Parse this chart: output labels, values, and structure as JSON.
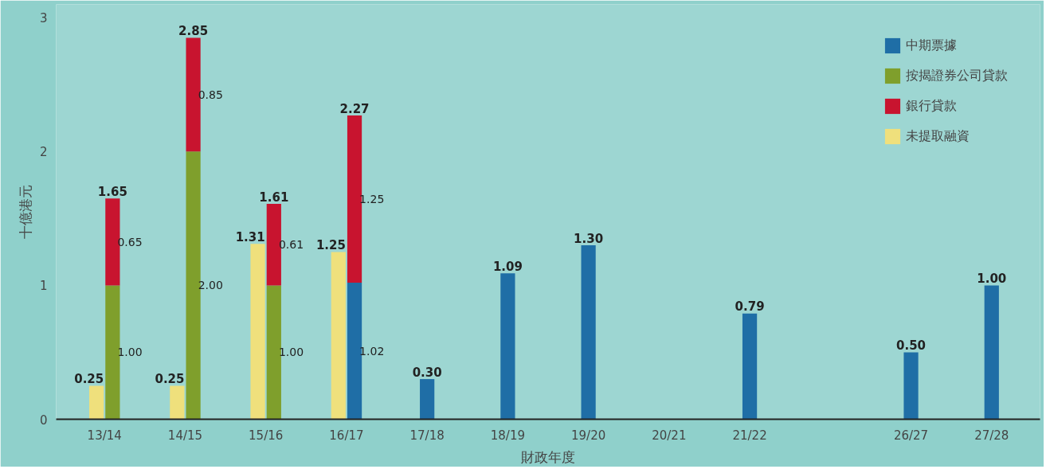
{
  "chart_data": {
    "type": "bar",
    "xlabel": "財政年度",
    "ylabel": "十億港元",
    "categories": [
      "13/14",
      "14/15",
      "15/16",
      "16/17",
      "17/18",
      "18/19",
      "19/20",
      "20/21",
      "21/22",
      null,
      "26/27",
      "27/28"
    ],
    "ylim": [
      0,
      3.1
    ],
    "yticks": [
      0,
      1,
      2,
      3
    ],
    "grid": false,
    "legend": "top right",
    "series": [
      {
        "name": "中期票據",
        "color": "#1f6ea6",
        "values": [
          null,
          null,
          null,
          1.02,
          0.3,
          1.09,
          1.3,
          null,
          0.79,
          null,
          0.5,
          1.0
        ],
        "value_labels": [
          null,
          null,
          null,
          "1.02",
          "0.30",
          "1.09",
          "1.30",
          null,
          "0.79",
          null,
          "0.50",
          "1.00"
        ]
      },
      {
        "name": "按揭證券公司貸款",
        "color": "#7f9f2c",
        "values": [
          1.0,
          2.0,
          1.0,
          null,
          null,
          null,
          null,
          null,
          null,
          null,
          null,
          null
        ],
        "value_labels": [
          "1.00",
          "2.00",
          "1.00",
          null,
          null,
          null,
          null,
          null,
          null,
          null,
          null,
          null
        ]
      },
      {
        "name": "銀行貸款",
        "color": "#c8142f",
        "values": [
          0.65,
          0.85,
          0.61,
          1.25,
          null,
          null,
          null,
          null,
          null,
          null,
          null,
          null
        ],
        "base": [
          1.0,
          2.0,
          1.0,
          1.02,
          null,
          null,
          null,
          null,
          null,
          null,
          null,
          null
        ],
        "value_labels": [
          "0.65",
          "0.85",
          "0.61",
          "1.25",
          null,
          null,
          null,
          null,
          null,
          null,
          null,
          null
        ]
      },
      {
        "name": "未提取融資",
        "color": "#efe07c",
        "values": [
          0.25,
          0.25,
          1.31,
          1.25,
          null,
          null,
          null,
          null,
          null,
          null,
          null,
          null
        ],
        "value_labels": [
          "0.25",
          "0.25",
          "1.31",
          "1.25",
          null,
          null,
          null,
          null,
          null,
          null,
          null,
          null
        ]
      }
    ],
    "annotations": [
      {
        "text": "1.65",
        "x": "13/14",
        "y": 1.65
      },
      {
        "text": "2.85",
        "x": "14/15",
        "y": 2.85
      },
      {
        "text": "1.61",
        "x": "15/16",
        "y": 1.61
      },
      {
        "text": "2.27",
        "x": "16/17",
        "y": 2.27
      }
    ]
  }
}
